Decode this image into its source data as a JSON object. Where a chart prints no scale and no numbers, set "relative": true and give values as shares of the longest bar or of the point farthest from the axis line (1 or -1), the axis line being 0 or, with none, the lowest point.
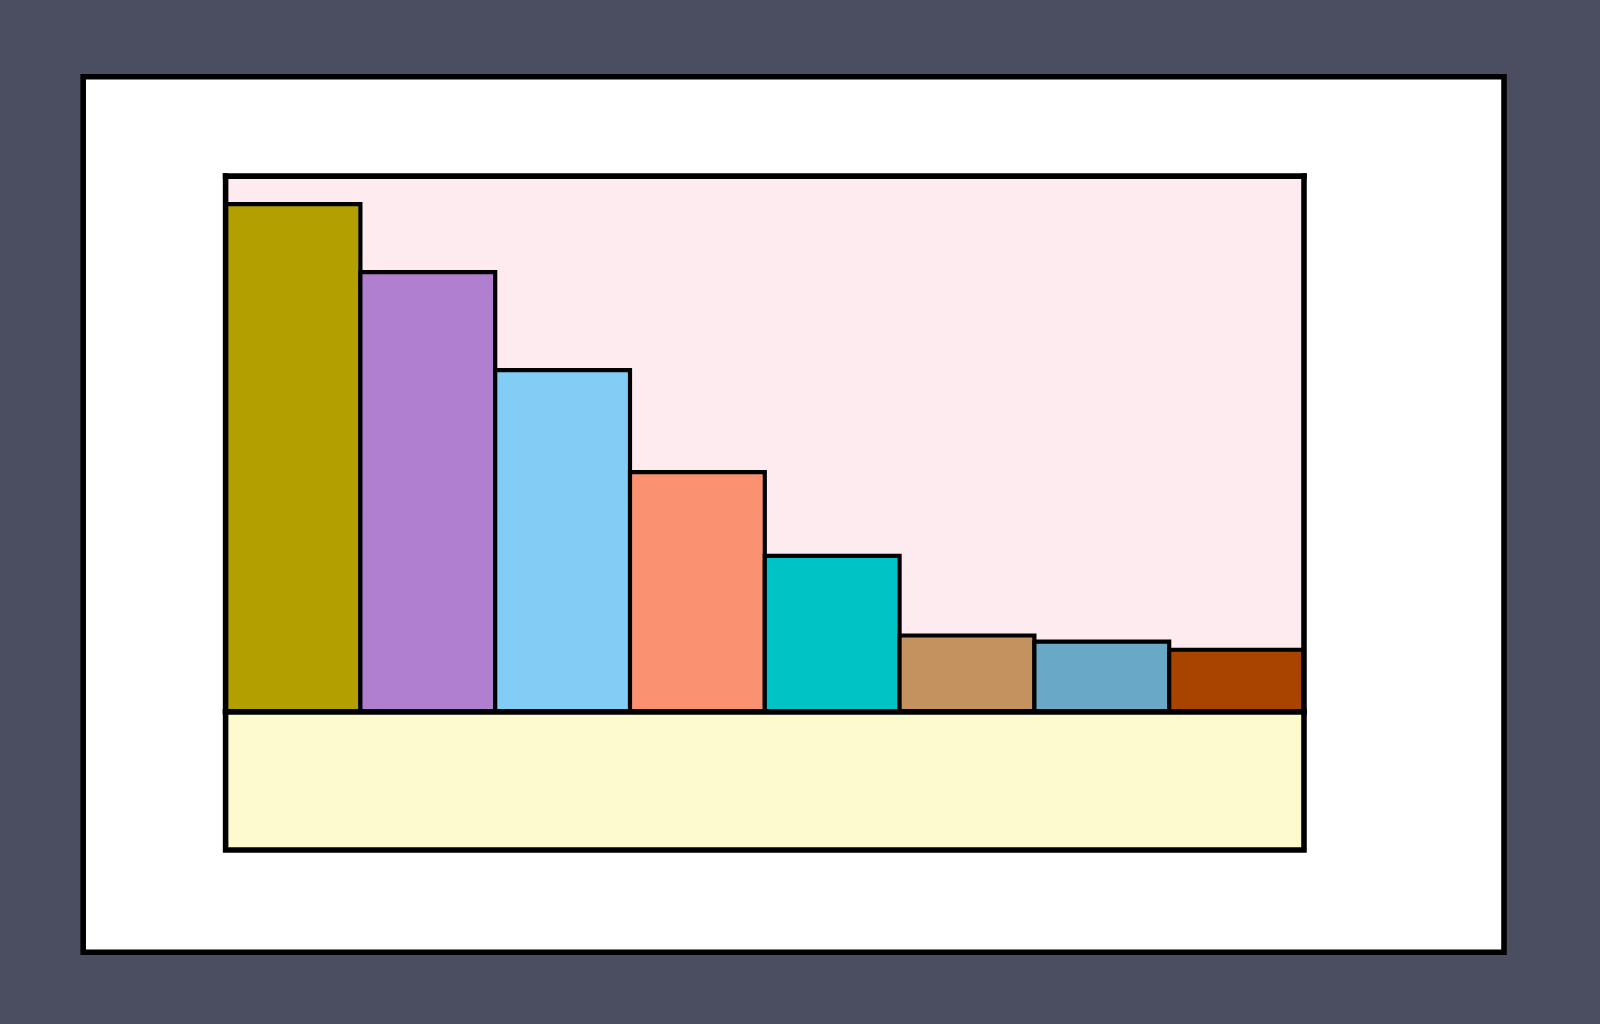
{
  "chart_data": {
    "type": "bar",
    "relative": true,
    "categories": [
      null,
      null,
      null,
      null,
      null,
      null,
      null,
      null
    ],
    "values": [
      1,
      0.866,
      0.673,
      0.472,
      0.307,
      0.15,
      0.138,
      0.122
    ],
    "colors": [
      "#b3a000",
      "#b07fd0",
      "#82cdf5",
      "#fa9170",
      "#00c3c6",
      "#c4925f",
      "#6aa8c8",
      "#a84300"
    ],
    "data_labels": false
  }
}
